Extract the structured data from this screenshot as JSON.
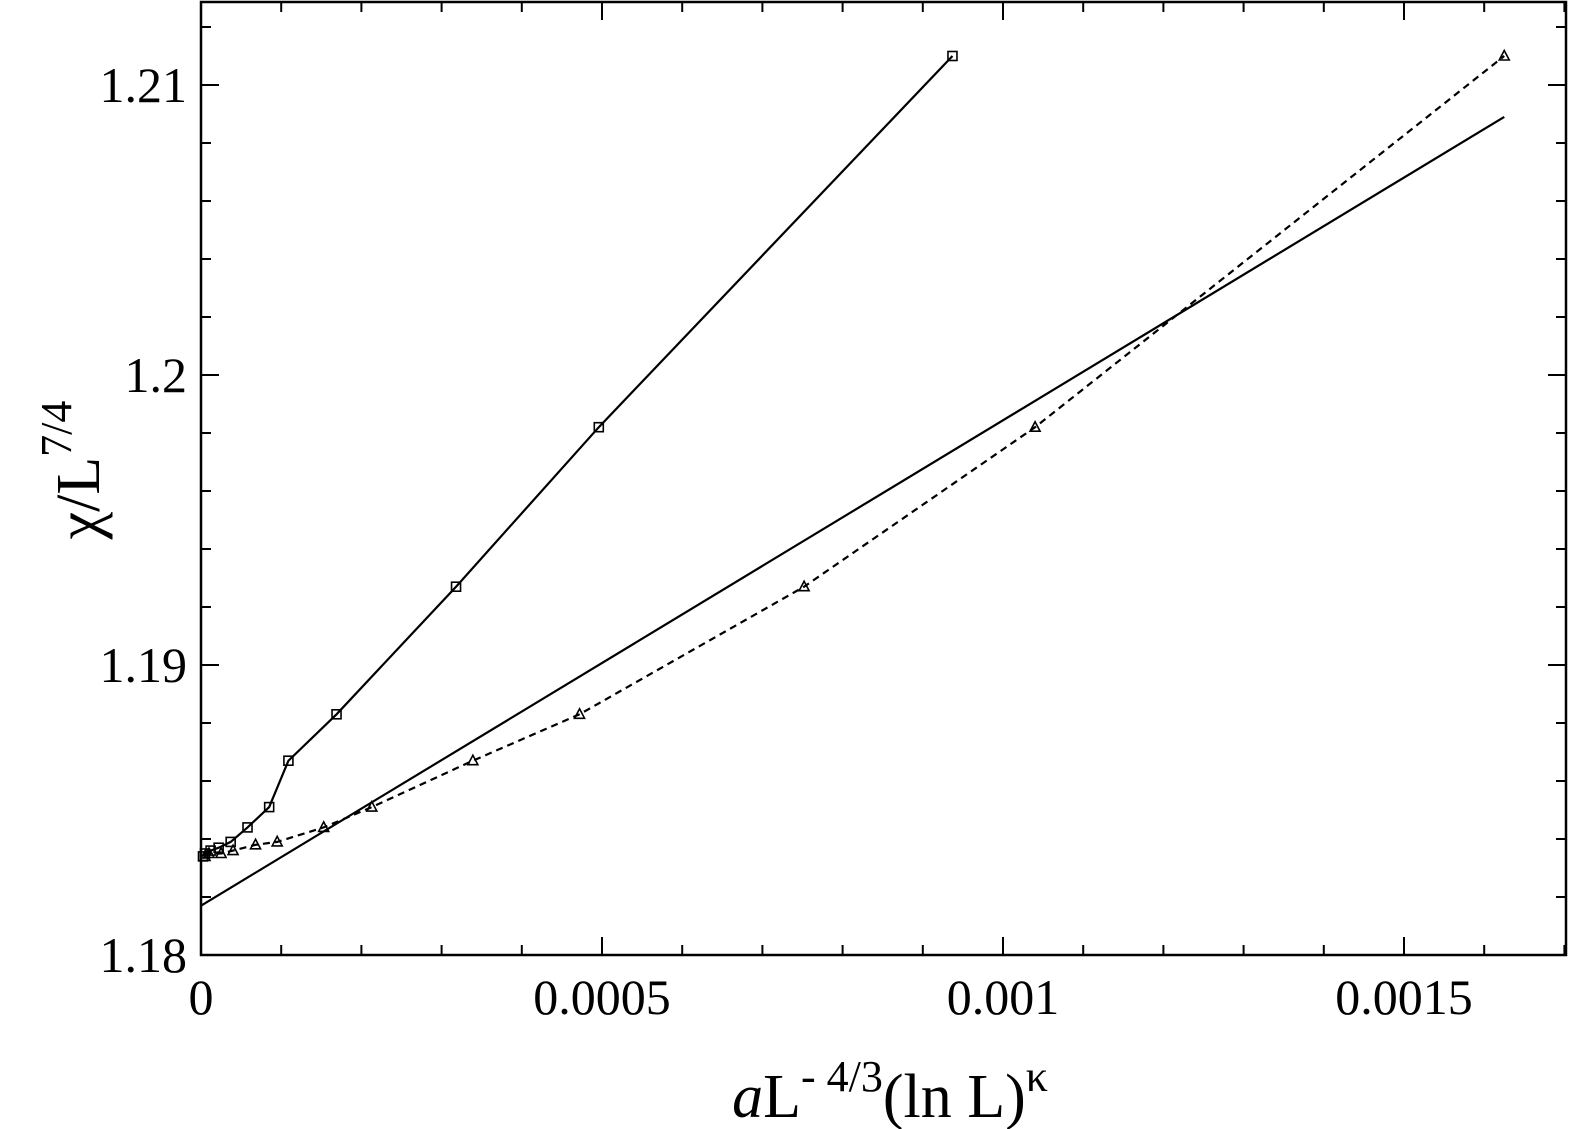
{
  "chart_data": {
    "type": "line",
    "xlim": [
      0,
      0.0017
    ],
    "ylim": [
      1.18,
      1.213
    ],
    "grid": false,
    "legend": "none",
    "x_major_ticks": [
      0,
      0.0005,
      0.001,
      0.0015
    ],
    "x_tick_labels": [
      "0",
      "0.0005",
      "0.001",
      "0.0015"
    ],
    "y_major_ticks": [
      1.18,
      1.19,
      1.2,
      1.21
    ],
    "y_tick_labels": [
      "1.18",
      "1.19",
      "1.2",
      "1.21"
    ],
    "xlabel": {
      "italic_prefix": "a",
      "base": "L",
      "superscript": "- 4/3",
      "middle": "(ln L)",
      "superscript2": "κ"
    },
    "ylabel": {
      "base": "χ/L",
      "superscript": "7/4"
    },
    "series": [
      {
        "marker": "square",
        "line": "solid",
        "points": [
          [
            2.5e-06,
            1.1834
          ],
          [
            5e-06,
            1.1835
          ],
          [
            1.2e-05,
            1.1836
          ],
          [
            2.2e-05,
            1.1837
          ],
          [
            3.7e-05,
            1.1839
          ],
          [
            5.8e-05,
            1.1844
          ],
          [
            8.5e-05,
            1.1851
          ],
          [
            0.000109,
            1.1867
          ],
          [
            0.000169,
            1.1883
          ],
          [
            0.000318,
            1.1927
          ],
          [
            0.000496,
            1.1982
          ],
          [
            0.000937,
            1.211
          ]
        ]
      },
      {
        "marker": "triangle",
        "line": "dashed",
        "points": [
          [
            5e-06,
            1.1834
          ],
          [
            1e-05,
            1.1835
          ],
          [
            2.5e-05,
            1.1835
          ],
          [
            4e-05,
            1.1836
          ],
          [
            6.8e-05,
            1.1838
          ],
          [
            9.5e-05,
            1.1839
          ],
          [
            0.000153,
            1.1844
          ],
          [
            0.000213,
            1.1851
          ],
          [
            0.000339,
            1.1867
          ],
          [
            0.000472,
            1.1883
          ],
          [
            0.000752,
            1.1927
          ],
          [
            0.00104,
            1.1982
          ],
          [
            0.001625,
            1.211
          ]
        ]
      },
      {
        "marker": "none",
        "line": "solid",
        "points": [
          [
            0,
            1.1817
          ],
          [
            0.001625,
            1.2089
          ]
        ]
      }
    ]
  }
}
